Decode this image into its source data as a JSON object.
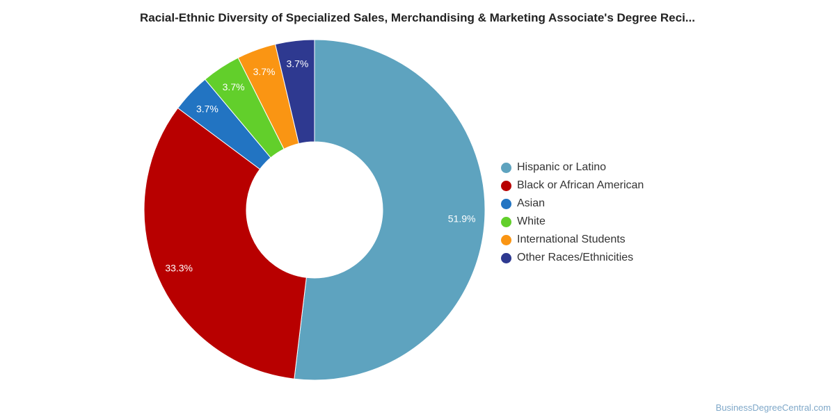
{
  "chart_data": {
    "type": "pie",
    "title": "Racial-Ethnic Diversity of Specialized Sales, Merchandising & Marketing Associate's Degree Reci...",
    "categories": [
      "Hispanic or Latino",
      "Black or African American",
      "Asian",
      "White",
      "International Students",
      "Other Races/Ethnicities"
    ],
    "values": [
      51.9,
      33.3,
      3.7,
      3.7,
      3.7,
      3.7
    ],
    "labels": [
      "51.9%",
      "33.3%",
      "3.7%",
      "3.7%",
      "3.7%",
      "3.7%"
    ],
    "colors": [
      "#5ea3bf",
      "#b80000",
      "#2274c2",
      "#62cf2b",
      "#fa9513",
      "#2e3990"
    ],
    "donut": true,
    "legend_position": "right"
  },
  "watermark": "BusinessDegreeCentral.com"
}
